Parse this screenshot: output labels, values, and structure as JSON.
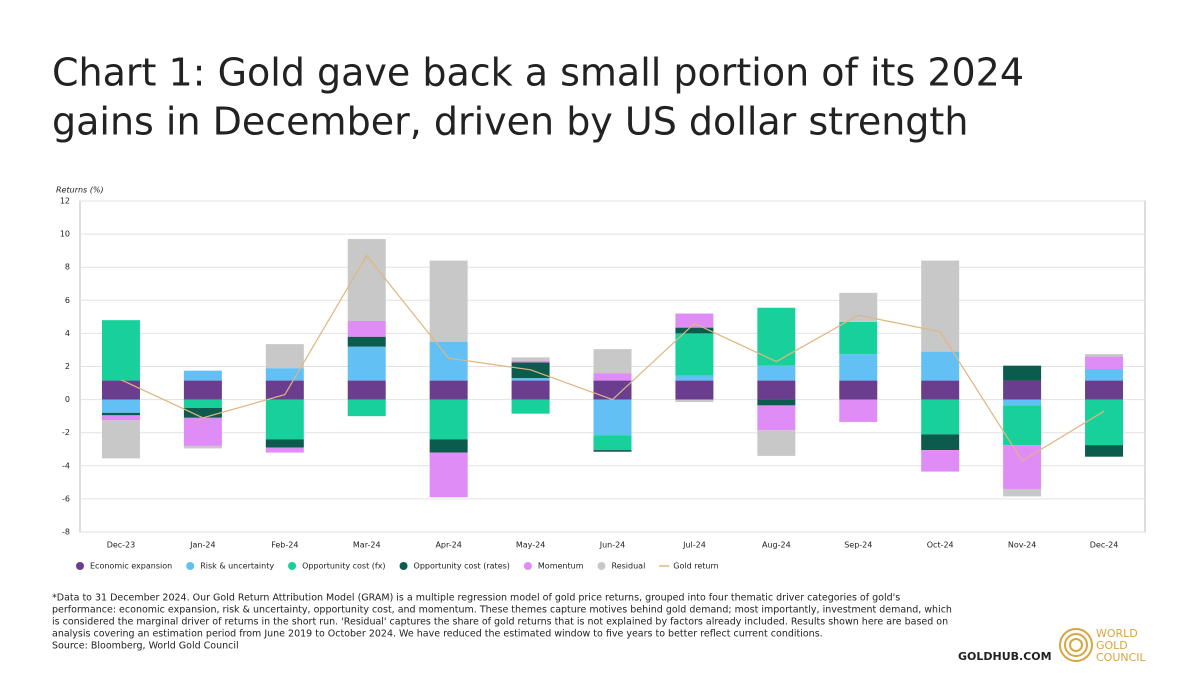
{
  "header": {
    "title_lines": [
      "Chart 1: Gold gave back a small portion of its 2024",
      "gains in December, driven by US dollar strength"
    ]
  },
  "chart_data": {
    "type": "bar",
    "stacked": true,
    "y_label": "Returns (%)",
    "categories": [
      "Dec-23",
      "Jan-24",
      "Feb-24",
      "Mar-24",
      "Apr-24",
      "May-24",
      "Jun-24",
      "Jul-24",
      "Aug-24",
      "Sep-24",
      "Oct-24",
      "Nov-24",
      "Dec-24"
    ],
    "series": [
      {
        "name": "Economic expansion",
        "type": "bar",
        "color": "#6a3d8f",
        "values": [
          1.15,
          1.15,
          1.15,
          1.15,
          1.15,
          1.15,
          1.15,
          1.15,
          1.15,
          1.15,
          1.15,
          1.15,
          1.15
        ]
      },
      {
        "name": "Risk & uncertainty",
        "type": "bar",
        "color": "#62c0f5",
        "values": [
          -0.8,
          0.6,
          0.75,
          2.05,
          2.35,
          0.15,
          -2.15,
          0.3,
          0.9,
          1.6,
          1.75,
          -0.35,
          0.7
        ]
      },
      {
        "name": "Opportunity cost (fx)",
        "type": "bar",
        "color": "#18d19a",
        "values": [
          3.65,
          -0.5,
          -2.4,
          -1.0,
          -2.4,
          -0.85,
          -0.9,
          2.55,
          3.5,
          1.95,
          -2.1,
          -2.4,
          -2.75
        ]
      },
      {
        "name": "Opportunity cost (rates)",
        "type": "bar",
        "color": "#0b5c4c",
        "values": [
          -0.15,
          -0.6,
          -0.5,
          0.6,
          -0.8,
          0.95,
          -0.1,
          0.35,
          -0.35,
          0,
          -0.95,
          0.9,
          -0.7
        ]
      },
      {
        "name": "Momentum",
        "type": "bar",
        "color": "#df8cf7",
        "values": [
          -0.3,
          -1.7,
          -0.3,
          0.95,
          -2.7,
          0.1,
          0.45,
          0.85,
          -1.5,
          -1.35,
          -1.3,
          -2.65,
          0.75
        ]
      },
      {
        "name": "Residual",
        "type": "bar",
        "color": "#c8c8c8",
        "values": [
          -2.3,
          -0.15,
          1.45,
          4.95,
          4.9,
          0.2,
          1.45,
          -0.15,
          -1.55,
          1.75,
          5.5,
          -0.45,
          0.15
        ]
      },
      {
        "name": "Gold return",
        "type": "line",
        "color": "#e0b57f",
        "values": [
          1.2,
          -1.1,
          0.3,
          8.7,
          2.5,
          1.8,
          0,
          4.6,
          2.3,
          5.1,
          4.1,
          -3.7,
          -0.7
        ]
      }
    ],
    "ylim": [
      -8,
      12
    ],
    "yticks": [
      -8,
      -6,
      -4,
      -2,
      0,
      2,
      4,
      6,
      8,
      10,
      12
    ],
    "grid": true,
    "legend": "bottom"
  },
  "footnote": {
    "lines": [
      "*Data to 31 December 2024. Our Gold Return Attribution Model (GRAM) is a multiple regression model of gold price returns, grouped into four thematic driver categories of gold's",
      "performance: economic expansion, risk & uncertainty, opportunity cost, and momentum. These themes capture motives behind gold demand; most importantly, investment demand, which",
      "is considered the marginal driver of returns in the short run. 'Residual' captures the share of gold returns that is not explained by factors already included. Results shown here are based on",
      "analysis covering an estimation period from June 2019 to October 2024. We have reduced the estimated window to five years to better reflect current conditions."
    ],
    "source": "Source: Bloomberg, World Gold Council"
  },
  "footer": {
    "site": "GOLDHUB.COM",
    "logo_lines": [
      "WORLD",
      "GOLD",
      "COUNCIL"
    ]
  }
}
